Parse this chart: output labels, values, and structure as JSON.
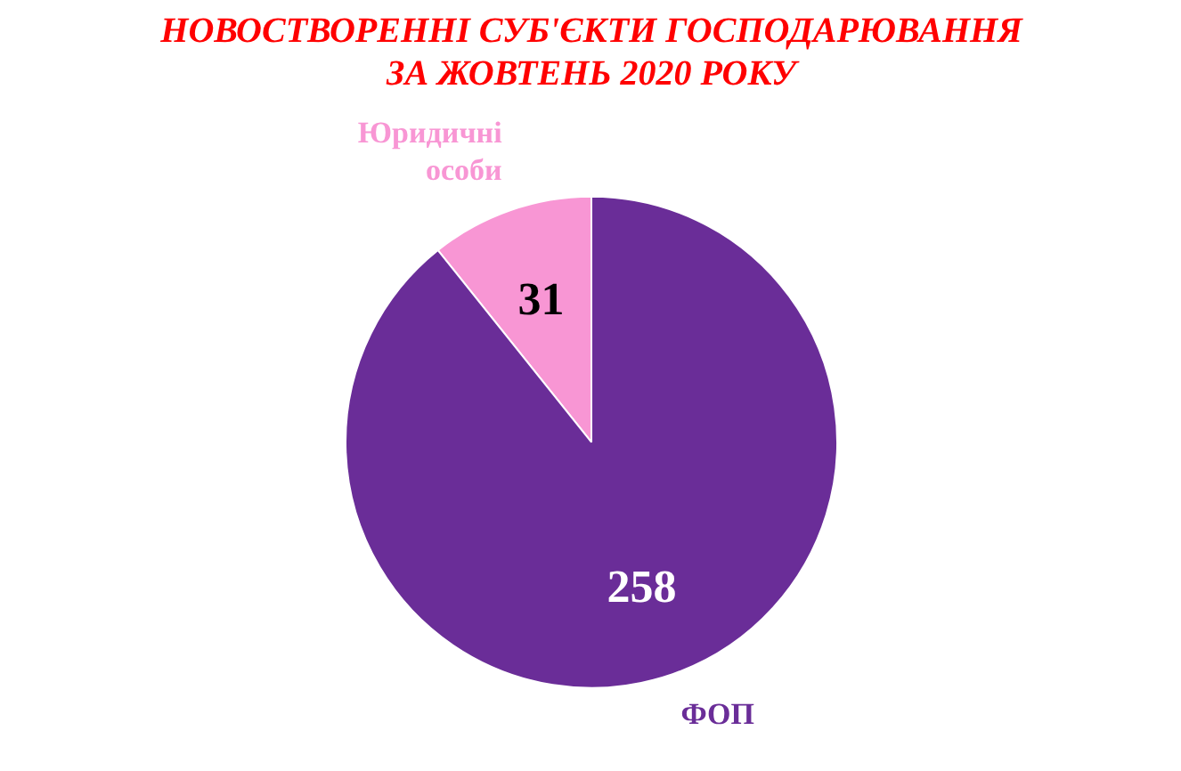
{
  "chart_data": {
    "type": "pie",
    "title": "НОВОСТВОРЕННІ СУБ'ЄКТИ ГОСПОДАРЮВАННЯ ЗА ЖОВТЕНЬ 2020 РОКУ",
    "categories": [
      "Юридичні особи",
      "ФОП"
    ],
    "values": [
      31,
      258
    ],
    "colors": [
      "#f896d4",
      "#6a2d98"
    ],
    "data_labels": true
  }
}
